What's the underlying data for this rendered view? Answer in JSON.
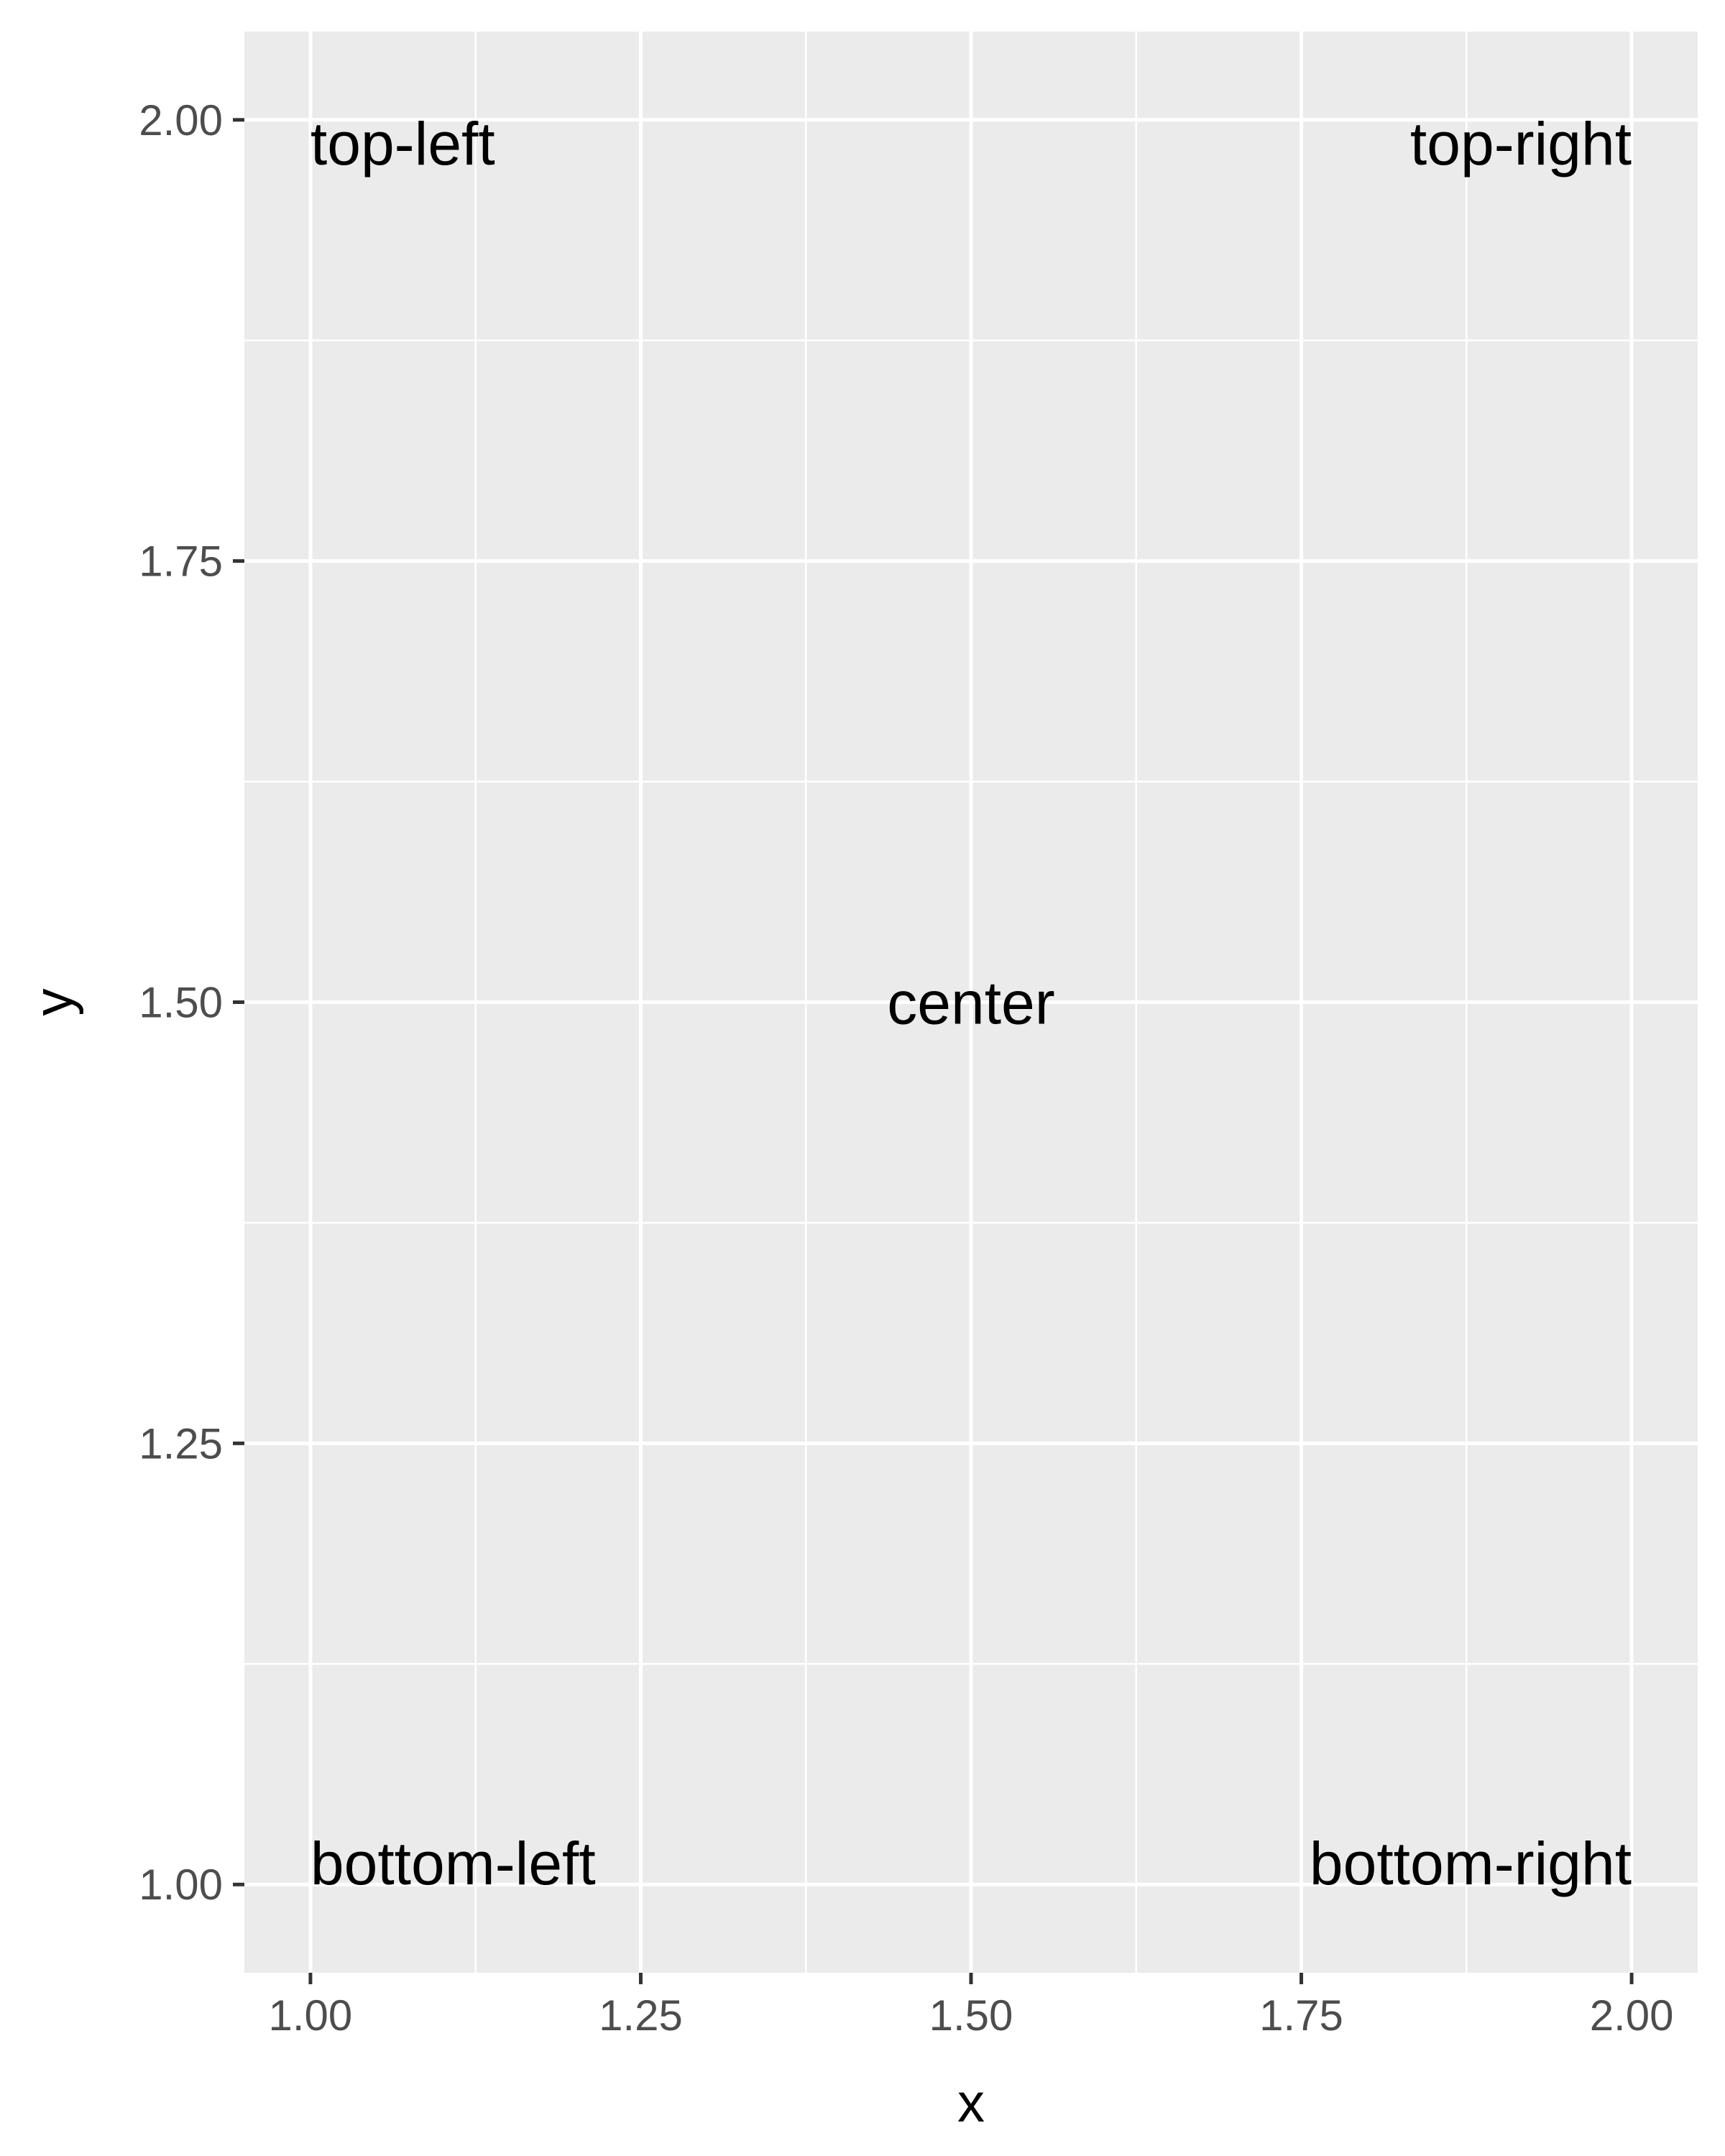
{
  "chart_data": {
    "type": "scatter",
    "xlabel": "x",
    "ylabel": "y",
    "xlim": [
      0.95,
      2.05
    ],
    "ylim": [
      0.95,
      2.05
    ],
    "x_ticks": [
      1.0,
      1.25,
      1.5,
      1.75,
      2.0
    ],
    "y_ticks": [
      1.0,
      1.25,
      1.5,
      1.75,
      2.0
    ],
    "x_tick_labels": [
      "1.00",
      "1.25",
      "1.50",
      "1.75",
      "2.00"
    ],
    "y_tick_labels": [
      "1.00",
      "1.25",
      "1.50",
      "1.75",
      "2.00"
    ],
    "grid": true,
    "legend": "none",
    "panel_color": "#ebebeb",
    "grid_color": "#ffffff",
    "annotations": [
      {
        "x": 1.0,
        "y": 2.0,
        "text": "top-left",
        "hjust": "left",
        "vjust": "top"
      },
      {
        "x": 2.0,
        "y": 2.0,
        "text": "top-right",
        "hjust": "right",
        "vjust": "top"
      },
      {
        "x": 1.5,
        "y": 1.5,
        "text": "center",
        "hjust": "center",
        "vjust": "middle"
      },
      {
        "x": 1.0,
        "y": 1.0,
        "text": "bottom-left",
        "hjust": "left",
        "vjust": "bottom"
      },
      {
        "x": 2.0,
        "y": 1.0,
        "text": "bottom-right",
        "hjust": "right",
        "vjust": "bottom"
      }
    ]
  }
}
